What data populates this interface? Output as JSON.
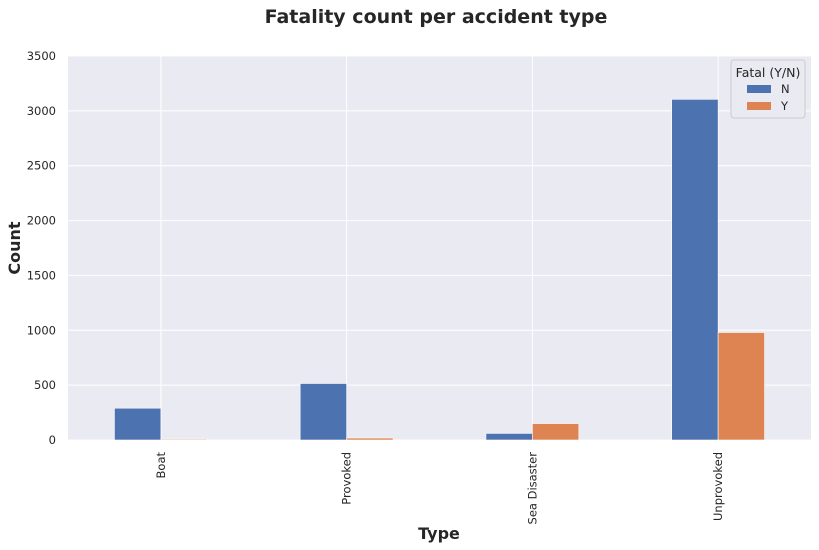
{
  "chart_data": {
    "type": "bar",
    "title": "Fatality count per accident type",
    "xlabel": "Type",
    "ylabel": "Count",
    "categories": [
      "Boat",
      "Provoked",
      "Sea Disaster",
      "Unprovoked"
    ],
    "series": [
      {
        "name": "N",
        "color": "#4c72b0",
        "values": [
          290,
          515,
          60,
          3105
        ]
      },
      {
        "name": "Y",
        "color": "#dd8452",
        "values": [
          8,
          18,
          150,
          980
        ]
      }
    ],
    "ylim": [
      0,
      3500
    ],
    "yticks": [
      0,
      500,
      1000,
      1500,
      2000,
      2500,
      3000,
      3500
    ],
    "grid": true,
    "background": "#eaeaf2",
    "legend": {
      "title": "Fatal (Y/N)",
      "position": "top-right"
    }
  }
}
